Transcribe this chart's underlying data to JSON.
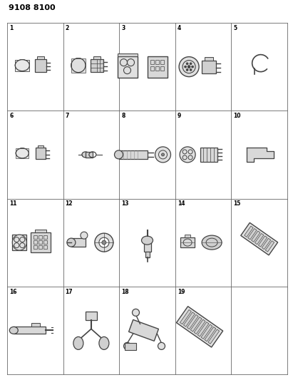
{
  "title": "9108 8100",
  "title_fontsize": 8,
  "background_color": "#ffffff",
  "line_color": "#444444",
  "grid_color": "#666666",
  "num_cols": 5,
  "num_rows": 4,
  "cell_numbers": {
    "0_0": "1",
    "0_1": "2",
    "0_2": "3",
    "0_3": "4",
    "0_4": "5",
    "1_0": "6",
    "1_1": "7",
    "1_2": "8",
    "1_3": "9",
    "1_4": "10",
    "2_0": "11",
    "2_1": "12",
    "2_2": "13",
    "2_3": "14",
    "2_4": "15",
    "3_0": "16",
    "3_1": "17",
    "3_2": "18",
    "3_3": "19",
    "3_4": ""
  },
  "number_fontsize": 5.5,
  "figsize": [
    4.11,
    5.33
  ],
  "dpi": 100
}
